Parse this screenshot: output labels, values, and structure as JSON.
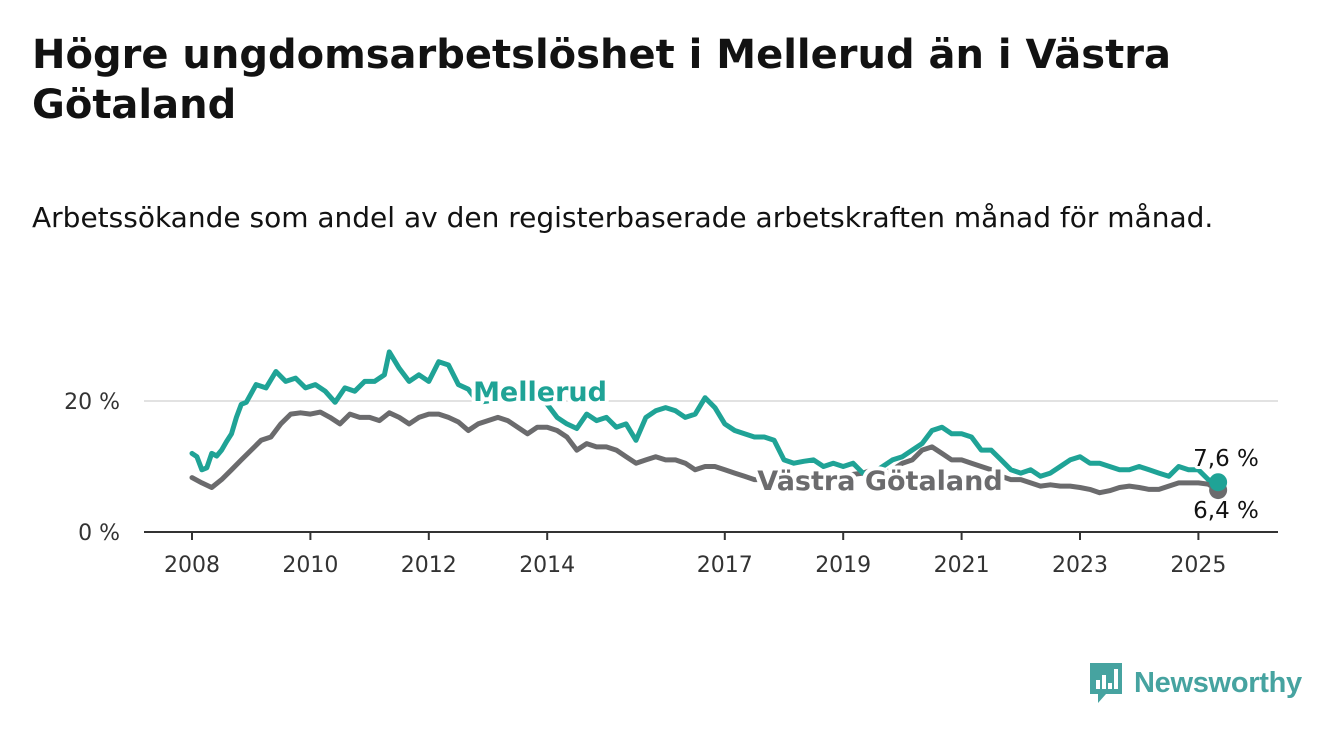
{
  "title": "Högre ungdomsarbetslöshet i Mellerud än i Västra Götaland",
  "subtitle": "Arbetssökande som andel av den registerbaserade arbetskraften månad för månad.",
  "brand": {
    "name": "Newsworthy",
    "logo_icon": "bar-chart-speech-bubble-icon"
  },
  "colors": {
    "mellerud": "#1fa396",
    "vastra_gotaland": "#6b6b6d",
    "logo": "#46a3a0"
  },
  "chart_data": {
    "type": "line",
    "x_tick_labels": [
      "2008",
      "2010",
      "2012",
      "2014",
      "2017",
      "2019",
      "2021",
      "2023",
      "2025"
    ],
    "y_tick_labels": [
      "0 %",
      "20 %"
    ],
    "ylim": [
      0,
      30
    ],
    "grid": true,
    "series": [
      {
        "name": "Mellerud",
        "color": "#1fa396",
        "end_label": "7,6 %",
        "points": [
          [
            "2008-01",
            12.0
          ],
          [
            "2008-02",
            11.5
          ],
          [
            "2008-03",
            9.5
          ],
          [
            "2008-04",
            9.8
          ],
          [
            "2008-05",
            12.0
          ],
          [
            "2008-06",
            11.6
          ],
          [
            "2008-07",
            12.5
          ],
          [
            "2008-08",
            13.8
          ],
          [
            "2008-09",
            15.0
          ],
          [
            "2008-10",
            17.5
          ],
          [
            "2008-11",
            19.5
          ],
          [
            "2008-12",
            19.8
          ],
          [
            "2009-02",
            22.5
          ],
          [
            "2009-04",
            22.0
          ],
          [
            "2009-06",
            24.5
          ],
          [
            "2009-08",
            23.0
          ],
          [
            "2009-10",
            23.5
          ],
          [
            "2009-12",
            22.0
          ],
          [
            "2010-02",
            22.5
          ],
          [
            "2010-04",
            21.5
          ],
          [
            "2010-06",
            19.8
          ],
          [
            "2010-08",
            22.0
          ],
          [
            "2010-10",
            21.5
          ],
          [
            "2010-12",
            23.0
          ],
          [
            "2011-02",
            23.0
          ],
          [
            "2011-04",
            24.0
          ],
          [
            "2011-05",
            27.5
          ],
          [
            "2011-07",
            25.0
          ],
          [
            "2011-09",
            23.0
          ],
          [
            "2011-11",
            24.0
          ],
          [
            "2012-01",
            23.0
          ],
          [
            "2012-03",
            26.0
          ],
          [
            "2012-05",
            25.5
          ],
          [
            "2012-07",
            22.5
          ],
          [
            "2012-09",
            21.8
          ],
          [
            "2012-11",
            19.8
          ],
          [
            "2013-01",
            20.0
          ],
          [
            "2013-03",
            22.0
          ],
          [
            "2013-05",
            22.0
          ],
          [
            "2013-07",
            20.5
          ],
          [
            "2013-09",
            20.0
          ],
          [
            "2013-11",
            21.0
          ],
          [
            "2014-01",
            19.5
          ],
          [
            "2014-03",
            17.5
          ],
          [
            "2014-05",
            16.5
          ],
          [
            "2014-07",
            15.8
          ],
          [
            "2014-09",
            18.0
          ],
          [
            "2014-11",
            17.0
          ],
          [
            "2015-01",
            17.5
          ],
          [
            "2015-03",
            16.0
          ],
          [
            "2015-05",
            16.5
          ],
          [
            "2015-07",
            14.0
          ],
          [
            "2015-09",
            17.5
          ],
          [
            "2015-11",
            18.5
          ],
          [
            "2016-01",
            19.0
          ],
          [
            "2016-03",
            18.5
          ],
          [
            "2016-05",
            17.5
          ],
          [
            "2016-07",
            18.0
          ],
          [
            "2016-09",
            20.5
          ],
          [
            "2016-11",
            19.0
          ],
          [
            "2017-01",
            16.5
          ],
          [
            "2017-03",
            15.5
          ],
          [
            "2017-05",
            15.0
          ],
          [
            "2017-07",
            14.5
          ],
          [
            "2017-09",
            14.5
          ],
          [
            "2017-11",
            14.0
          ],
          [
            "2018-01",
            11.0
          ],
          [
            "2018-03",
            10.5
          ],
          [
            "2018-05",
            10.8
          ],
          [
            "2018-07",
            11.0
          ],
          [
            "2018-09",
            10.0
          ],
          [
            "2018-11",
            10.5
          ],
          [
            "2019-01",
            10.0
          ],
          [
            "2019-03",
            10.5
          ],
          [
            "2019-05",
            9.0
          ],
          [
            "2019-07",
            9.0
          ],
          [
            "2019-09",
            10.0
          ],
          [
            "2019-11",
            11.0
          ],
          [
            "2020-01",
            11.5
          ],
          [
            "2020-03",
            12.5
          ],
          [
            "2020-05",
            13.5
          ],
          [
            "2020-07",
            15.5
          ],
          [
            "2020-09",
            16.0
          ],
          [
            "2020-11",
            15.0
          ],
          [
            "2021-01",
            15.0
          ],
          [
            "2021-03",
            14.5
          ],
          [
            "2021-05",
            12.5
          ],
          [
            "2021-07",
            12.5
          ],
          [
            "2021-09",
            11.0
          ],
          [
            "2021-11",
            9.5
          ],
          [
            "2022-01",
            9.0
          ],
          [
            "2022-03",
            9.5
          ],
          [
            "2022-05",
            8.5
          ],
          [
            "2022-07",
            9.0
          ],
          [
            "2022-09",
            10.0
          ],
          [
            "2022-11",
            11.0
          ],
          [
            "2023-01",
            11.5
          ],
          [
            "2023-03",
            10.5
          ],
          [
            "2023-05",
            10.5
          ],
          [
            "2023-07",
            10.0
          ],
          [
            "2023-09",
            9.5
          ],
          [
            "2023-11",
            9.5
          ],
          [
            "2024-01",
            10.0
          ],
          [
            "2024-03",
            9.5
          ],
          [
            "2024-05",
            9.0
          ],
          [
            "2024-07",
            8.5
          ],
          [
            "2024-09",
            10.0
          ],
          [
            "2024-11",
            9.5
          ],
          [
            "2025-01",
            9.5
          ],
          [
            "2025-03",
            8.0
          ],
          [
            "2025-05",
            7.6
          ]
        ]
      },
      {
        "name": "Västra Götaland",
        "color": "#6b6b6d",
        "end_label": "6,4 %",
        "points": [
          [
            "2008-01",
            8.3
          ],
          [
            "2008-03",
            7.5
          ],
          [
            "2008-05",
            6.8
          ],
          [
            "2008-07",
            8.0
          ],
          [
            "2008-09",
            9.5
          ],
          [
            "2008-11",
            11.0
          ],
          [
            "2009-01",
            12.5
          ],
          [
            "2009-03",
            14.0
          ],
          [
            "2009-05",
            14.5
          ],
          [
            "2009-07",
            16.5
          ],
          [
            "2009-09",
            18.0
          ],
          [
            "2009-11",
            18.2
          ],
          [
            "2010-01",
            18.0
          ],
          [
            "2010-03",
            18.3
          ],
          [
            "2010-05",
            17.5
          ],
          [
            "2010-07",
            16.5
          ],
          [
            "2010-09",
            18.0
          ],
          [
            "2010-11",
            17.5
          ],
          [
            "2011-01",
            17.5
          ],
          [
            "2011-03",
            17.0
          ],
          [
            "2011-05",
            18.2
          ],
          [
            "2011-07",
            17.5
          ],
          [
            "2011-09",
            16.5
          ],
          [
            "2011-11",
            17.5
          ],
          [
            "2012-01",
            18.0
          ],
          [
            "2012-03",
            18.0
          ],
          [
            "2012-05",
            17.5
          ],
          [
            "2012-07",
            16.8
          ],
          [
            "2012-09",
            15.5
          ],
          [
            "2012-11",
            16.5
          ],
          [
            "2013-01",
            17.0
          ],
          [
            "2013-03",
            17.5
          ],
          [
            "2013-05",
            17.0
          ],
          [
            "2013-07",
            16.0
          ],
          [
            "2013-09",
            15.0
          ],
          [
            "2013-11",
            16.0
          ],
          [
            "2014-01",
            16.0
          ],
          [
            "2014-03",
            15.5
          ],
          [
            "2014-05",
            14.5
          ],
          [
            "2014-07",
            12.5
          ],
          [
            "2014-09",
            13.5
          ],
          [
            "2014-11",
            13.0
          ],
          [
            "2015-01",
            13.0
          ],
          [
            "2015-03",
            12.5
          ],
          [
            "2015-05",
            11.5
          ],
          [
            "2015-07",
            10.5
          ],
          [
            "2015-09",
            11.0
          ],
          [
            "2015-11",
            11.5
          ],
          [
            "2016-01",
            11.0
          ],
          [
            "2016-03",
            11.0
          ],
          [
            "2016-05",
            10.5
          ],
          [
            "2016-07",
            9.5
          ],
          [
            "2016-09",
            10.0
          ],
          [
            "2016-11",
            10.0
          ],
          [
            "2017-01",
            9.5
          ],
          [
            "2017-03",
            9.0
          ],
          [
            "2017-05",
            8.5
          ],
          [
            "2017-07",
            8.0
          ],
          [
            "2017-09",
            8.0
          ],
          [
            "2017-11",
            8.3
          ],
          [
            "2018-01",
            8.0
          ],
          [
            "2018-03",
            8.3
          ],
          [
            "2018-05",
            8.5
          ],
          [
            "2018-07",
            8.8
          ],
          [
            "2018-09",
            8.5
          ],
          [
            "2018-11",
            8.5
          ],
          [
            "2019-01",
            8.5
          ],
          [
            "2019-03",
            8.8
          ],
          [
            "2019-05",
            9.0
          ],
          [
            "2019-07",
            9.5
          ],
          [
            "2019-09",
            9.0
          ],
          [
            "2019-11",
            9.5
          ],
          [
            "2020-01",
            10.5
          ],
          [
            "2020-03",
            11.0
          ],
          [
            "2020-05",
            12.5
          ],
          [
            "2020-07",
            13.0
          ],
          [
            "2020-09",
            12.0
          ],
          [
            "2020-11",
            11.0
          ],
          [
            "2021-01",
            11.0
          ],
          [
            "2021-03",
            10.5
          ],
          [
            "2021-05",
            10.0
          ],
          [
            "2021-07",
            9.5
          ],
          [
            "2021-09",
            8.5
          ],
          [
            "2021-11",
            8.0
          ],
          [
            "2022-01",
            8.0
          ],
          [
            "2022-03",
            7.5
          ],
          [
            "2022-05",
            7.0
          ],
          [
            "2022-07",
            7.2
          ],
          [
            "2022-09",
            7.0
          ],
          [
            "2022-11",
            7.0
          ],
          [
            "2023-01",
            6.8
          ],
          [
            "2023-03",
            6.5
          ],
          [
            "2023-05",
            6.0
          ],
          [
            "2023-07",
            6.3
          ],
          [
            "2023-09",
            6.8
          ],
          [
            "2023-11",
            7.0
          ],
          [
            "2024-01",
            6.8
          ],
          [
            "2024-03",
            6.5
          ],
          [
            "2024-05",
            6.5
          ],
          [
            "2024-07",
            7.0
          ],
          [
            "2024-09",
            7.5
          ],
          [
            "2024-11",
            7.5
          ],
          [
            "2025-01",
            7.5
          ],
          [
            "2025-03",
            7.3
          ],
          [
            "2025-05",
            6.4
          ]
        ]
      }
    ]
  }
}
